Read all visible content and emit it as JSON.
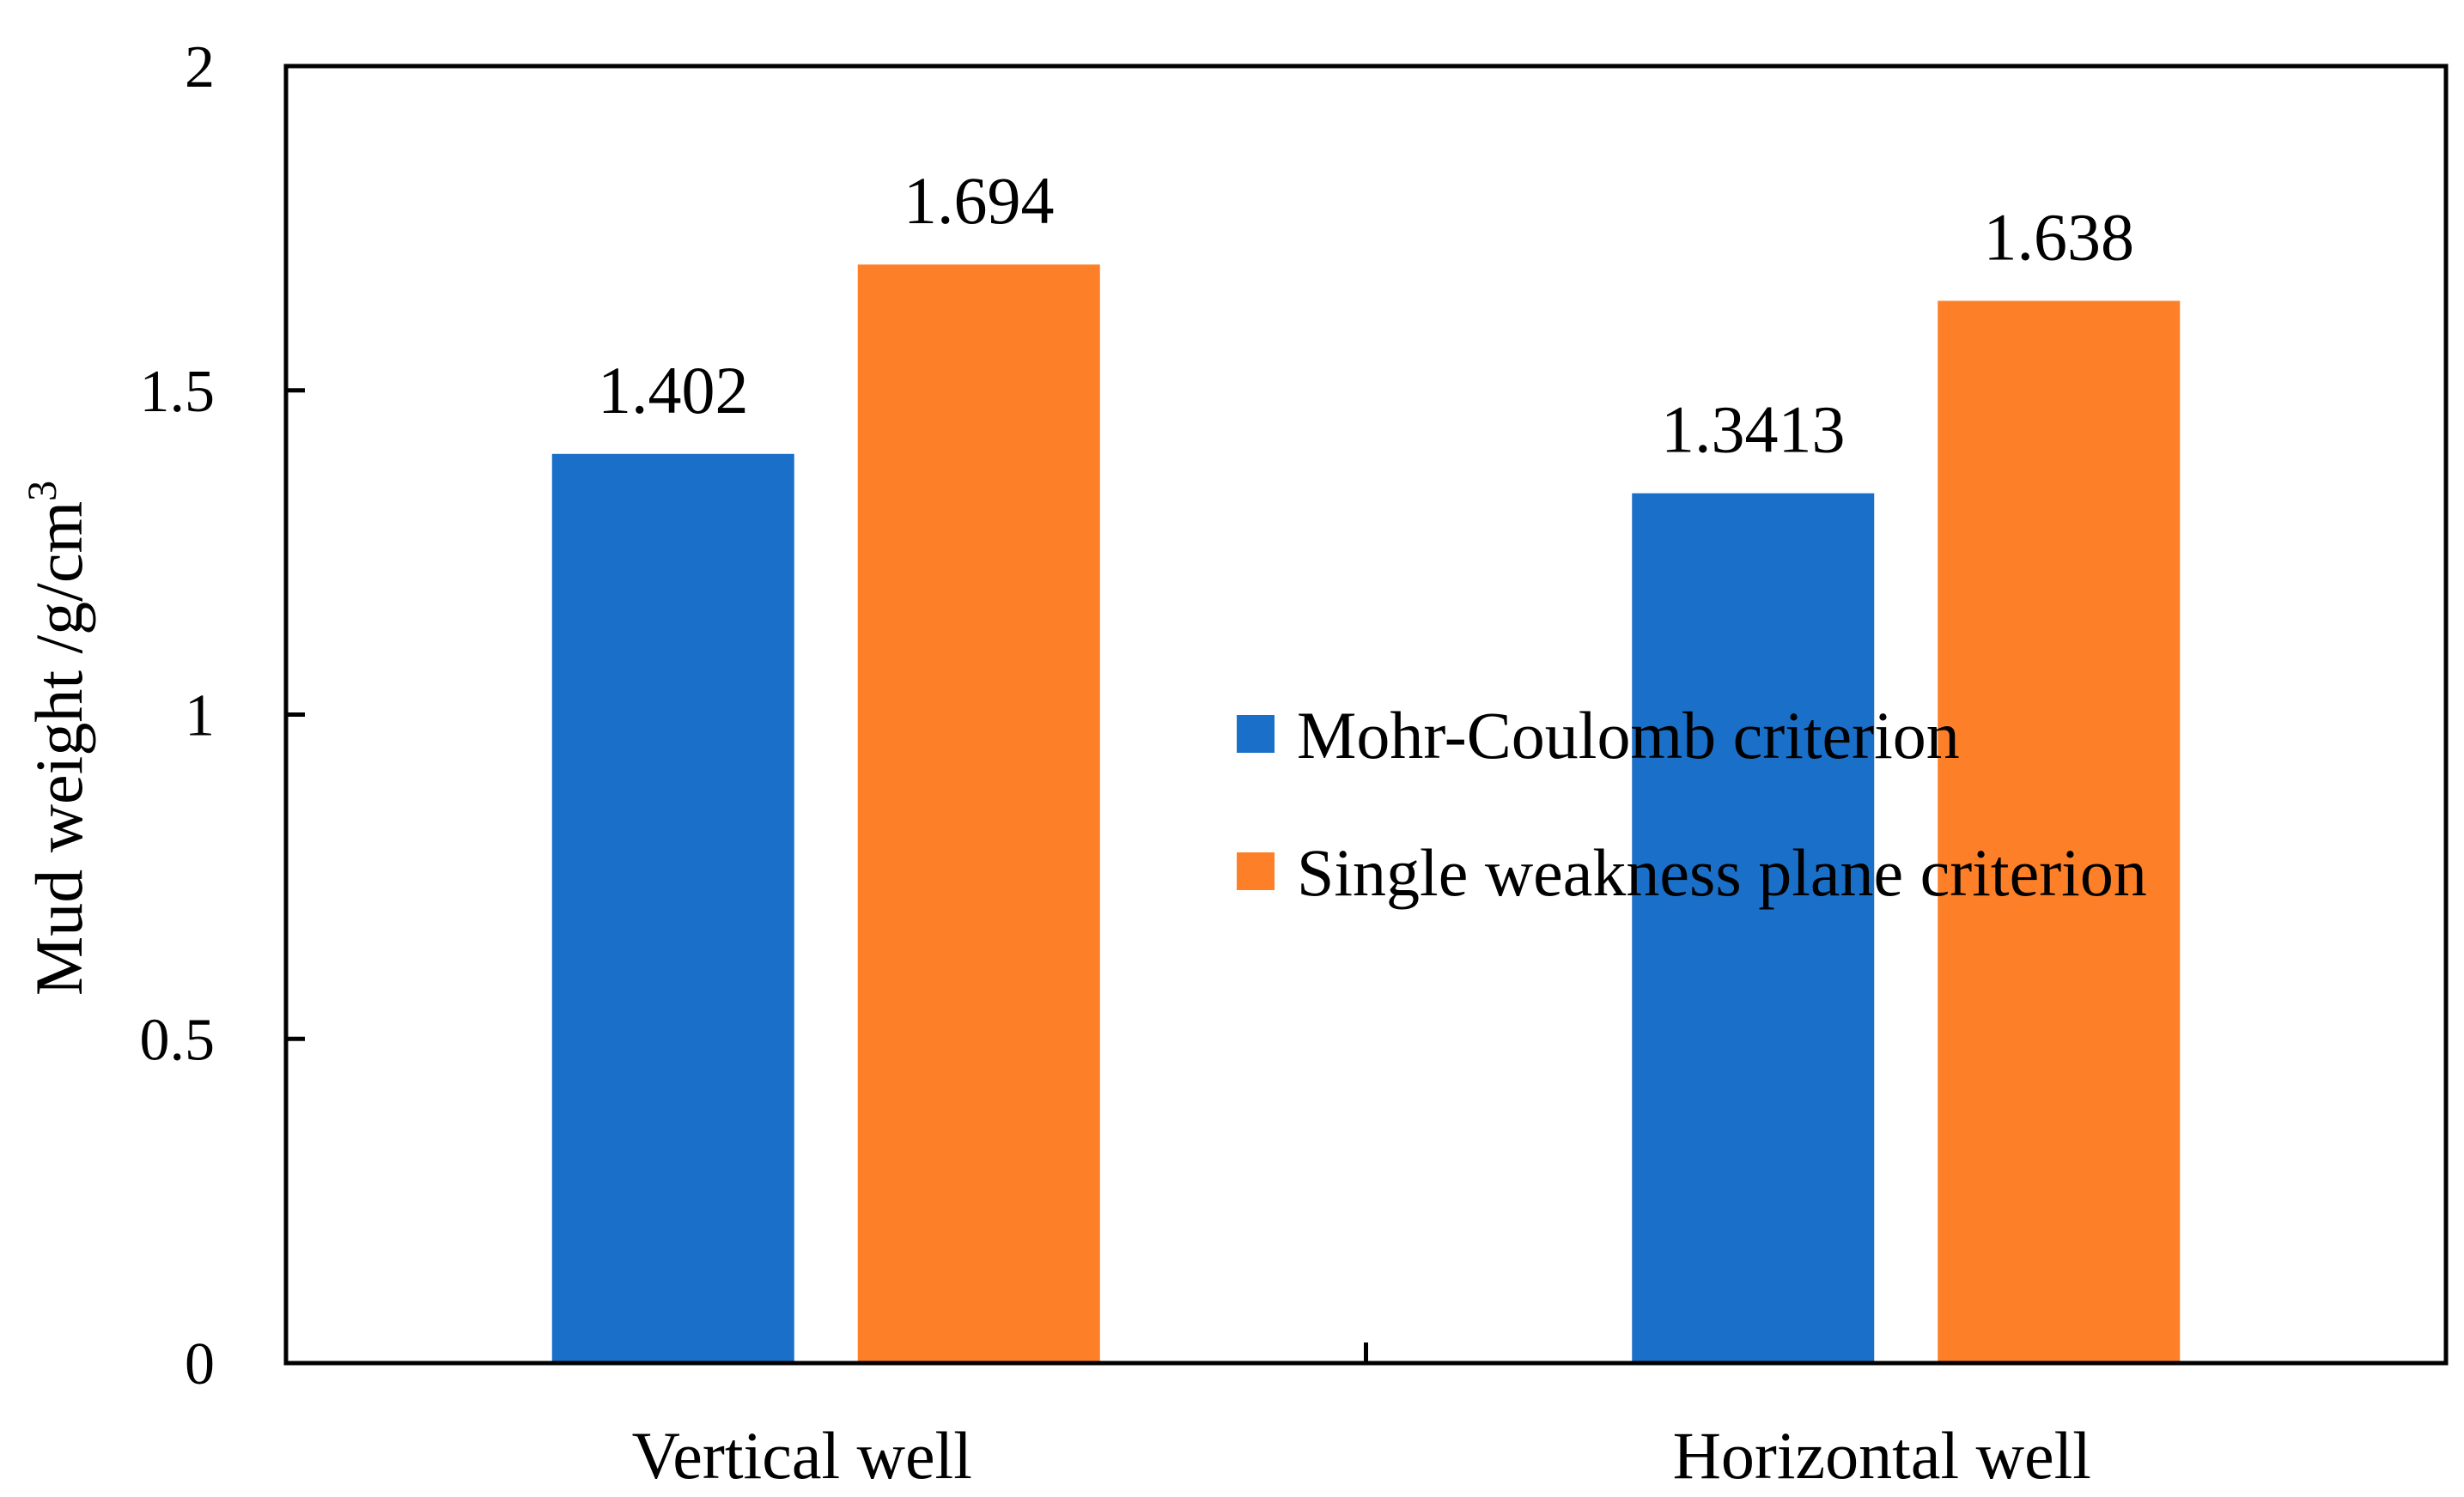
{
  "chart_data": {
    "type": "bar",
    "title": "",
    "xlabel": "",
    "ylabel": "Mud weight /g/cm",
    "ylabel_superscript": "3",
    "ylim": [
      0,
      2
    ],
    "yticks": [
      0,
      0.5,
      1,
      1.5,
      2
    ],
    "ytick_labels": [
      "0",
      "0.5",
      "1",
      "1.5",
      "2"
    ],
    "categories": [
      "Vertical well",
      "Horizontal well"
    ],
    "series": [
      {
        "name": "Mohr-Coulomb criterion",
        "color": "#1a70c8",
        "values": [
          1.402,
          1.3413
        ],
        "data_labels": [
          "1.402",
          "1.3413"
        ]
      },
      {
        "name": "Single weakness plane criterion",
        "color": "#fd7f27",
        "values": [
          1.694,
          1.638
        ],
        "data_labels": [
          "1.694",
          "1.638"
        ]
      }
    ],
    "legend_position": "center-right",
    "grid": false
  }
}
